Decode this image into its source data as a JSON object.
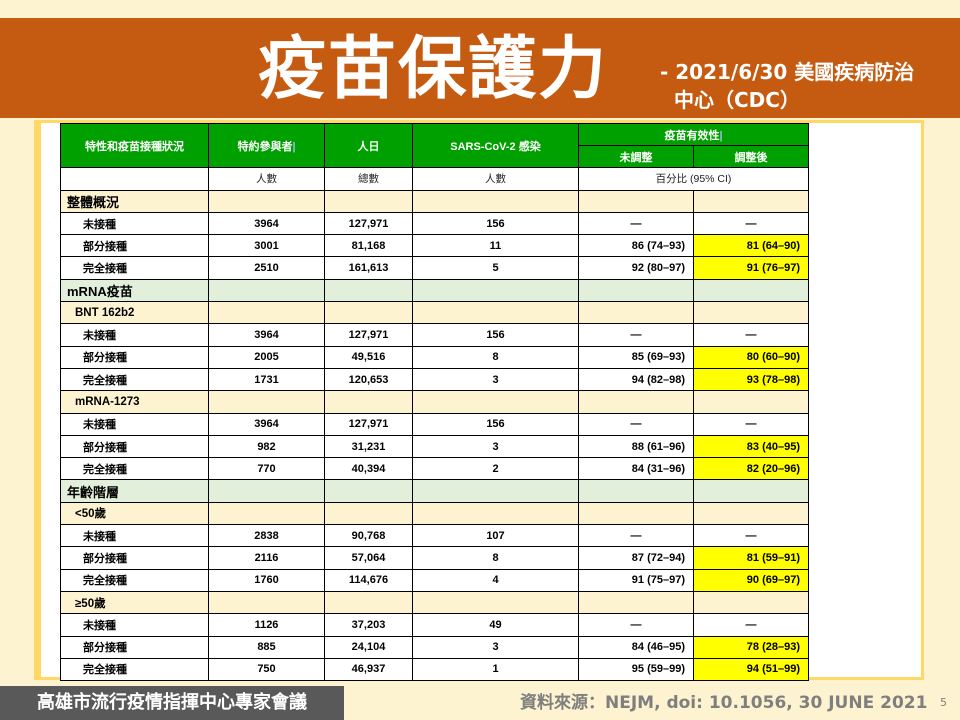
{
  "title": "疫苗保護力",
  "subtitle_line1": "- 2021/6/30  美國疾病防治",
  "subtitle_line2": "中心（CDC）",
  "table": {
    "headers": {
      "col1": "特性和疫苗接種狀況",
      "col2": "特約參與者",
      "col3": "人日",
      "col4": "SARS-CoV-2  感染",
      "col5_group": "疫苗有效性",
      "col5a": "未調整",
      "col5b": "調整後"
    },
    "units": {
      "col2": "人數",
      "col3": "總數",
      "col4": "人數",
      "col5": "百分比 (95% CI)"
    },
    "sections": [
      {
        "label": "整體概況",
        "style": "sec",
        "groups": [
          {
            "label": "",
            "rows": [
              {
                "status": "未接種",
                "participants": "3964",
                "person_days": "127,971",
                "infections": "156",
                "unadjusted": "—",
                "adjusted": "—"
              },
              {
                "status": "部分接種",
                "participants": "3001",
                "person_days": "81,168",
                "infections": "11",
                "unadjusted": "86 (74–93)",
                "adjusted": "81 (64–90)"
              },
              {
                "status": "完全接種",
                "participants": "2510",
                "person_days": "161,613",
                "infections": "5",
                "unadjusted": "92 (80–97)",
                "adjusted": "91 (76–97)"
              }
            ]
          }
        ]
      },
      {
        "label": "mRNA疫苗",
        "style": "sec2",
        "groups": [
          {
            "label": "BNT 162b2",
            "rows": [
              {
                "status": "未接種",
                "participants": "3964",
                "person_days": "127,971",
                "infections": "156",
                "unadjusted": "—",
                "adjusted": "—"
              },
              {
                "status": "部分接種",
                "participants": "2005",
                "person_days": "49,516",
                "infections": "8",
                "unadjusted": "85 (69–93)",
                "adjusted": "80 (60–90)"
              },
              {
                "status": "完全接種",
                "participants": "1731",
                "person_days": "120,653",
                "infections": "3",
                "unadjusted": "94 (82–98)",
                "adjusted": "93 (78–98)"
              }
            ]
          },
          {
            "label": "mRNA-1273",
            "rows": [
              {
                "status": "未接種",
                "participants": "3964",
                "person_days": "127,971",
                "infections": "156",
                "unadjusted": "—",
                "adjusted": "—"
              },
              {
                "status": "部分接種",
                "participants": "982",
                "person_days": "31,231",
                "infections": "3",
                "unadjusted": "88 (61–96)",
                "adjusted": "83 (40–95)"
              },
              {
                "status": "完全接種",
                "participants": "770",
                "person_days": "40,394",
                "infections": "2",
                "unadjusted": "84 (31–96)",
                "adjusted": "82 (20–96)"
              }
            ]
          }
        ]
      },
      {
        "label": "年齡階層",
        "style": "sec2",
        "groups": [
          {
            "label": "<50歲",
            "rows": [
              {
                "status": "未接種",
                "participants": "2838",
                "person_days": "90,768",
                "infections": "107",
                "unadjusted": "—",
                "adjusted": "—"
              },
              {
                "status": "部分接種",
                "participants": "2116",
                "person_days": "57,064",
                "infections": "8",
                "unadjusted": "87 (72–94)",
                "adjusted": "81 (59–91)"
              },
              {
                "status": "完全接種",
                "participants": "1760",
                "person_days": "114,676",
                "infections": "4",
                "unadjusted": "91 (75–97)",
                "adjusted": "90 (69–97)"
              }
            ]
          },
          {
            "label": "≥50歲",
            "rows": [
              {
                "status": "未接種",
                "participants": "1126",
                "person_days": "37,203",
                "infections": "49",
                "unadjusted": "—",
                "adjusted": "—"
              },
              {
                "status": "部分接種",
                "participants": "885",
                "person_days": "24,104",
                "infections": "3",
                "unadjusted": "84 (46–95)",
                "adjusted": "78 (28–93)"
              },
              {
                "status": "完全接種",
                "participants": "750",
                "person_days": "46,937",
                "infections": "1",
                "unadjusted": "95 (59–99)",
                "adjusted": "94 (51–99)"
              }
            ]
          }
        ]
      }
    ]
  },
  "footer": {
    "left": "高雄市流行疫情指揮中心專家會議",
    "source": "資料來源：NEJM, doi: 10.1056, 30 JUNE 2021",
    "page": "5"
  },
  "colors": {
    "title_band": "#c55a11",
    "header_green": "#00a000",
    "highlight": "#ffff00",
    "section_green": "#e2efda",
    "section_cream": "#fdf3d0"
  }
}
